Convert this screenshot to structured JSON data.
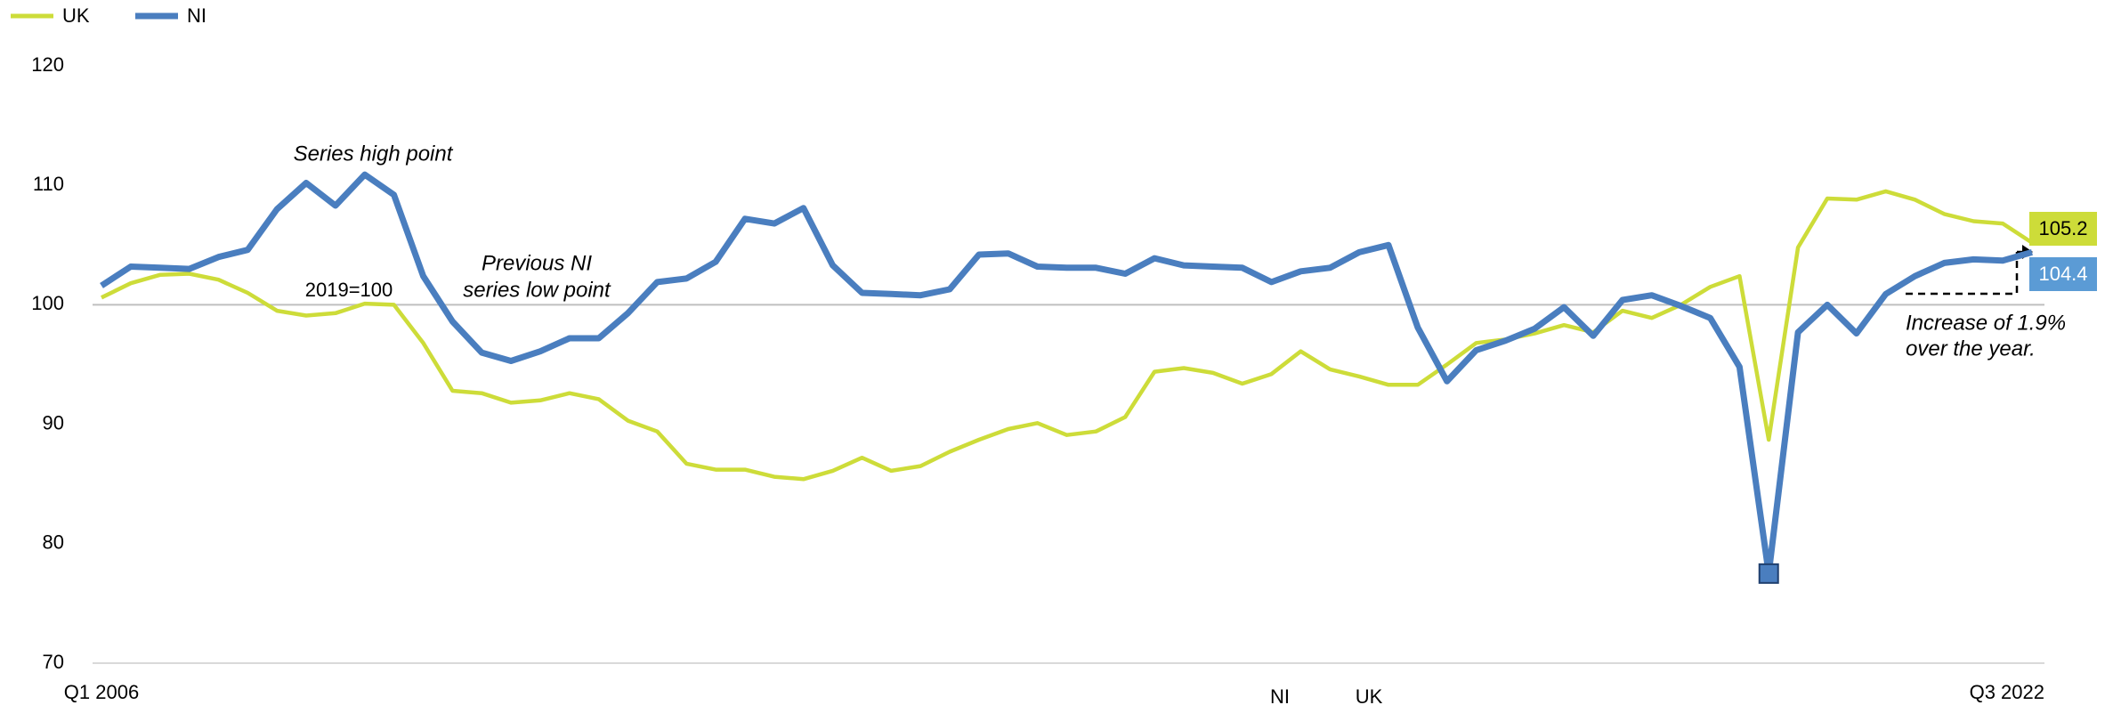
{
  "chart_data": {
    "type": "line",
    "categories": [
      "Q1 2006",
      null,
      null,
      null,
      null,
      null,
      null,
      null,
      null,
      null,
      null,
      null,
      null,
      null,
      null,
      null,
      null,
      null,
      null,
      null,
      null,
      null,
      null,
      null,
      null,
      null,
      null,
      null,
      null,
      null,
      null,
      null,
      null,
      null,
      null,
      null,
      null,
      null,
      null,
      null,
      null,
      null,
      null,
      null,
      null,
      null,
      null,
      null,
      null,
      null,
      null,
      null,
      null,
      null,
      null,
      null,
      null,
      null,
      null,
      null,
      null,
      null,
      null,
      null,
      null,
      null,
      "Q3 2022"
    ],
    "series": [
      {
        "name": "UK",
        "color": "#cddc39",
        "values": [
          100.6,
          101.8,
          102.5,
          102.6,
          102.1,
          101.0,
          99.5,
          99.1,
          99.3,
          100.1,
          100.0,
          96.8,
          92.8,
          92.6,
          91.8,
          92.0,
          92.6,
          92.1,
          90.3,
          89.4,
          86.7,
          86.2,
          86.2,
          85.6,
          85.4,
          86.1,
          87.2,
          86.1,
          86.5,
          87.7,
          88.7,
          89.6,
          90.1,
          89.1,
          89.4,
          90.6,
          94.4,
          94.7,
          94.3,
          93.4,
          94.2,
          96.1,
          94.6,
          94.0,
          93.3,
          93.3,
          95.0,
          96.8,
          97.1,
          97.6,
          98.3,
          97.7,
          99.5,
          98.9,
          100.0,
          101.5,
          102.4,
          88.7,
          104.8,
          108.9,
          108.8,
          109.5,
          108.8,
          107.6,
          107.0,
          106.8,
          105.2
        ]
      },
      {
        "name": "NI",
        "color": "#4a7ebf",
        "values": [
          101.6,
          103.2,
          103.1,
          103.0,
          104.0,
          104.6,
          108.0,
          110.2,
          108.3,
          110.9,
          109.2,
          102.4,
          98.6,
          96.0,
          95.3,
          96.1,
          97.2,
          97.2,
          99.3,
          101.9,
          102.2,
          103.6,
          107.2,
          106.8,
          108.1,
          103.3,
          101.0,
          100.9,
          100.8,
          101.3,
          104.2,
          104.3,
          103.2,
          103.1,
          103.1,
          102.6,
          103.9,
          103.3,
          103.2,
          103.1,
          101.9,
          102.8,
          103.1,
          104.4,
          105.0,
          98.1,
          93.6,
          96.2,
          97.0,
          98.0,
          99.8,
          97.4,
          100.4,
          100.8,
          99.9,
          98.9,
          94.8,
          77.5,
          97.7,
          100.0,
          97.6,
          100.9,
          102.4,
          103.5,
          103.8,
          103.7,
          104.4
        ]
      }
    ],
    "ylim": [
      70,
      120
    ],
    "yticks": [
      70,
      80,
      90,
      100,
      110,
      120
    ],
    "reference_line": 100,
    "grid": false,
    "legend": "top-left",
    "annotations": {
      "high": "Series high point",
      "low": [
        "Previous NI",
        "series low point"
      ],
      "base": "2019=100",
      "increase": [
        "Increase of 1.9%",
        "over the year."
      ]
    },
    "footer_labels": [
      "NI",
      "UK"
    ]
  }
}
